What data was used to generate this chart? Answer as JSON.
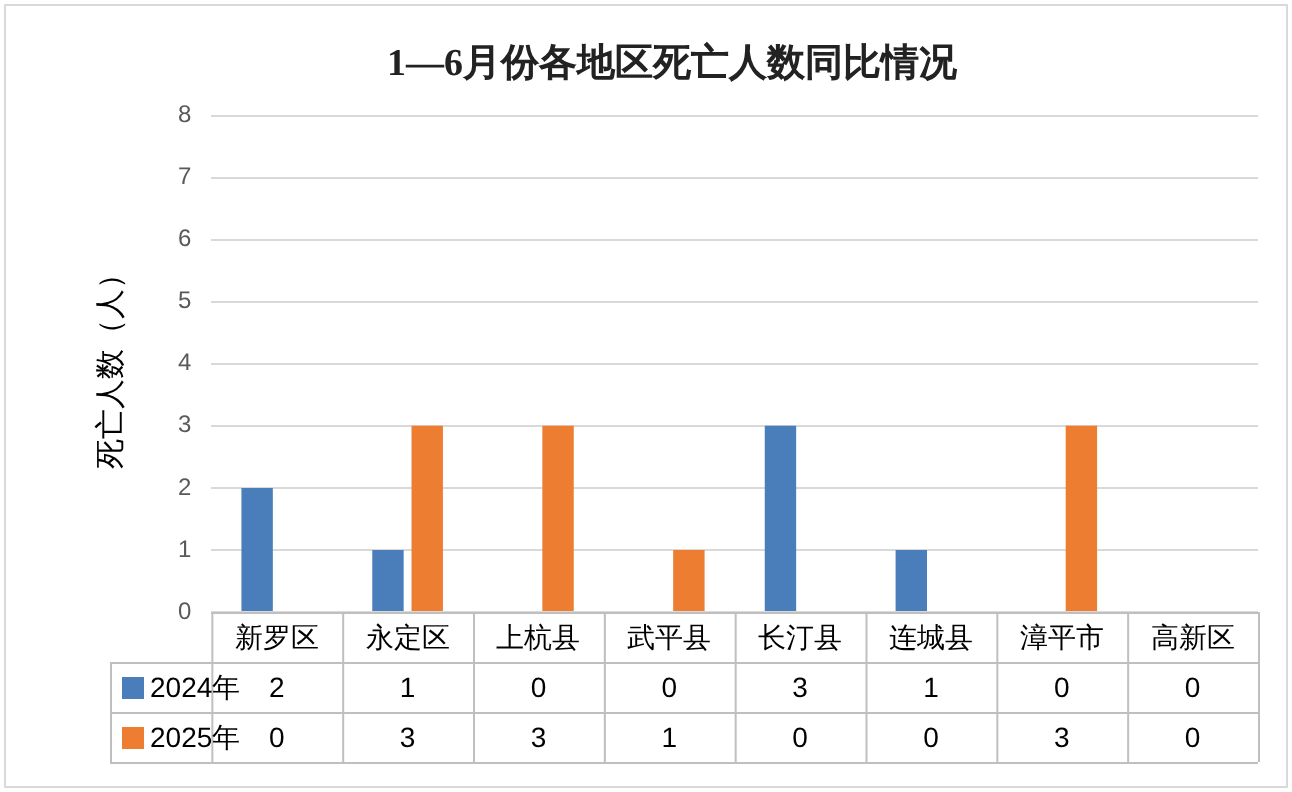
{
  "chart_data": {
    "type": "bar",
    "title": "1—6月份各地区死亡人数同比情况",
    "ylabel": "死亡人数（人）",
    "categories": [
      "新罗区",
      "永定区",
      "上杭县",
      "武平县",
      "长汀县",
      "连城县",
      "漳平市",
      "高新区"
    ],
    "series": [
      {
        "name": "2024年",
        "color": "#4a7ebb",
        "values": [
          2,
          1,
          0,
          0,
          3,
          1,
          0,
          0
        ]
      },
      {
        "name": "2025年",
        "color": "#ed7d31",
        "values": [
          0,
          3,
          3,
          1,
          0,
          0,
          3,
          0
        ]
      }
    ],
    "ylim": [
      0,
      8
    ],
    "yticks": [
      0,
      1,
      2,
      3,
      4,
      5,
      6,
      7,
      8
    ],
    "grid": "y",
    "legend": "bottom",
    "data_labels": true
  }
}
